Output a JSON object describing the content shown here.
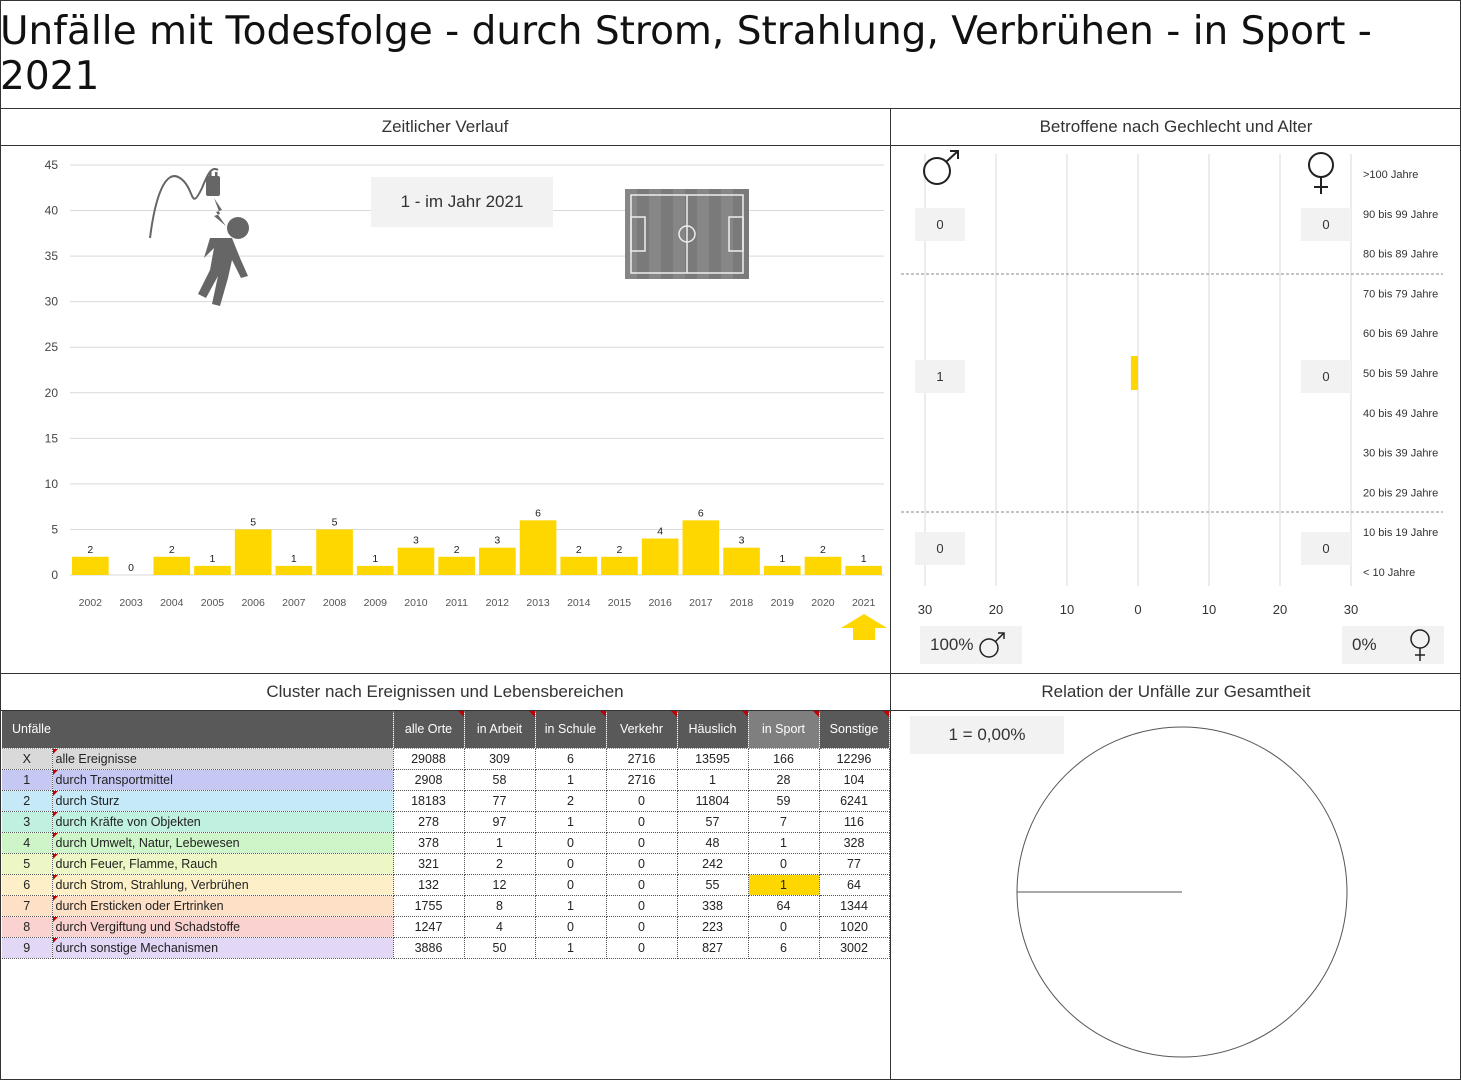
{
  "title": "Unfälle mit Todesfolge - durch Strom, Strahlung, Verbrühen - in Sport - 2021",
  "panels": {
    "timeline": "Zeitlicher Verlauf",
    "gender_age": "Betroffene nach Gechlecht und Alter",
    "cluster": "Cluster nach Ereignissen und Lebensbereichen",
    "relation": "Relation der Unfälle zur Gesamtheit"
  },
  "year_callout": "1 - im Jahr 2021",
  "colors": {
    "bar": "#ffd700",
    "grid": "#d9d9d9",
    "header": "#595959"
  },
  "icons": [
    "electric-shock-person-icon",
    "football-pitch-icon",
    "up-arrow-icon",
    "male-symbol-icon",
    "female-symbol-icon"
  ],
  "chart_data": [
    {
      "type": "bar",
      "title": "Zeitlicher Verlauf",
      "categories": [
        "2002",
        "2003",
        "2004",
        "2005",
        "2006",
        "2007",
        "2008",
        "2009",
        "2010",
        "2011",
        "2012",
        "2013",
        "2014",
        "2015",
        "2016",
        "2017",
        "2018",
        "2019",
        "2020",
        "2021"
      ],
      "values": [
        2,
        0,
        2,
        1,
        5,
        1,
        5,
        1,
        3,
        2,
        3,
        6,
        2,
        2,
        4,
        6,
        3,
        1,
        2,
        1
      ],
      "ylim": [
        0,
        45
      ],
      "yticks": [
        0,
        5,
        10,
        15,
        20,
        25,
        30,
        35,
        40,
        45
      ],
      "grid": true,
      "highlight": "2021"
    },
    {
      "type": "bar",
      "title": "Betroffene nach Gechlecht und Alter",
      "orientation": "horizontal-butterfly",
      "categories": [
        ">100 Jahre",
        "90 bis 99 Jahre",
        "80 bis 89 Jahre",
        "70 bis 79 Jahre",
        "60 bis 69 Jahre",
        "50 bis 59 Jahre",
        "40 bis 49 Jahre",
        "30 bis 39 Jahre",
        "20 bis 29 Jahre",
        "10 bis 19 Jahre",
        "< 10 Jahre"
      ],
      "series": [
        {
          "name": "männlich",
          "values": [
            0,
            0,
            0,
            0,
            0,
            1,
            0,
            0,
            0,
            0,
            0
          ]
        },
        {
          "name": "weiblich",
          "values": [
            0,
            0,
            0,
            0,
            0,
            0,
            0,
            0,
            0,
            0,
            0
          ]
        }
      ],
      "xticks": [
        "30",
        "20",
        "10",
        "0",
        "10",
        "20",
        "30"
      ],
      "xlim": [
        -30,
        30
      ],
      "group_totals": {
        "male": [
          "0",
          "1",
          "0"
        ],
        "female": [
          "0",
          "0",
          "0"
        ]
      },
      "share": {
        "male": "100%",
        "female": "0%"
      }
    },
    {
      "type": "pie",
      "title": "Relation der Unfälle zur Gesamtheit",
      "label": "1 =  0,00%",
      "values": [
        1,
        29088
      ]
    }
  ],
  "table": {
    "header_label": "Unfälle",
    "columns": [
      "alle Orte",
      "in Arbeit",
      "in Schule",
      "Verkehr",
      "Häuslich",
      "in Sport",
      "Sonstige"
    ],
    "rows": [
      {
        "nr": "X",
        "name": "alle Ereignisse",
        "values": [
          "29088",
          "309",
          "6",
          "2716",
          "13595",
          "166",
          "12296"
        ],
        "color": "#d9d9d9"
      },
      {
        "nr": "1",
        "name": "durch Transportmittel",
        "values": [
          "2908",
          "58",
          "1",
          "2716",
          "1",
          "28",
          "104"
        ],
        "color": "#c5c8f3"
      },
      {
        "nr": "2",
        "name": "durch Sturz",
        "values": [
          "18183",
          "77",
          "2",
          "0",
          "11804",
          "59",
          "6241"
        ],
        "color": "#c5e9f7"
      },
      {
        "nr": "3",
        "name": "durch Kräfte von Objekten",
        "values": [
          "278",
          "97",
          "1",
          "0",
          "57",
          "7",
          "116"
        ],
        "color": "#c0f0e0"
      },
      {
        "nr": "4",
        "name": "durch Umwelt, Natur, Lebewesen",
        "values": [
          "378",
          "1",
          "0",
          "0",
          "48",
          "1",
          "328"
        ],
        "color": "#cdf5c8"
      },
      {
        "nr": "5",
        "name": "durch Feuer, Flamme, Rauch",
        "values": [
          "321",
          "2",
          "0",
          "0",
          "242",
          "0",
          "77"
        ],
        "color": "#edf7c5"
      },
      {
        "nr": "6",
        "name": "durch Strom, Strahlung, Verbrühen",
        "values": [
          "132",
          "12",
          "0",
          "0",
          "55",
          "1",
          "64"
        ],
        "color": "#fdf0c8"
      },
      {
        "nr": "7",
        "name": "durch Ersticken oder Ertrinken",
        "values": [
          "1755",
          "8",
          "1",
          "0",
          "338",
          "64",
          "1344"
        ],
        "color": "#fde0c5"
      },
      {
        "nr": "8",
        "name": "durch Vergiftung und Schadstoffe",
        "values": [
          "1247",
          "4",
          "0",
          "0",
          "223",
          "0",
          "1020"
        ],
        "color": "#fad2d0"
      },
      {
        "nr": "9",
        "name": "durch sonstige Mechanismen",
        "values": [
          "3886",
          "50",
          "1",
          "0",
          "827",
          "6",
          "3002"
        ],
        "color": "#e2d7f5"
      }
    ],
    "highlight": {
      "row": 6,
      "column": "in Sport"
    }
  }
}
